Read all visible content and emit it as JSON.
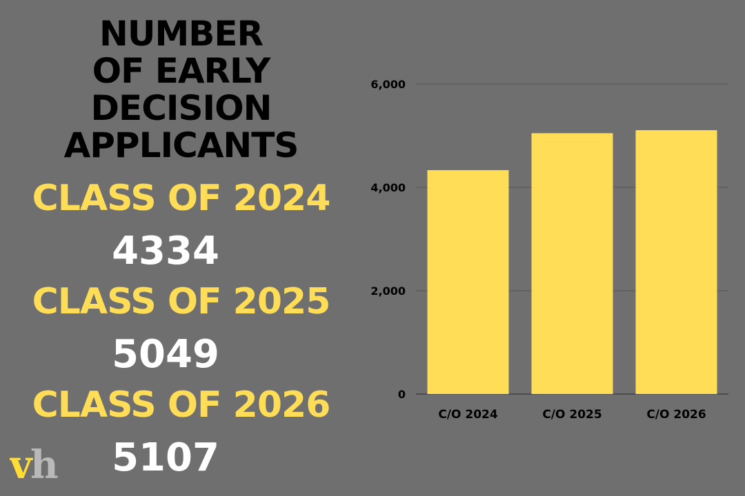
{
  "headline": {
    "lines": [
      "NUMBER",
      "OF EARLY",
      "DECISION",
      "APPLICANTS"
    ]
  },
  "classes": [
    {
      "label": "CLASS OF 2024",
      "count": "4334"
    },
    {
      "label": "CLASS OF 2025",
      "count": "5049"
    },
    {
      "label": "CLASS OF 2026",
      "count": "5107"
    }
  ],
  "logo": {
    "text": "vh"
  },
  "colors": {
    "background": "#6f6f6f",
    "accent": "#ffdd57",
    "headline": "#000000",
    "count": "#ffffff",
    "gridline": "#555555"
  },
  "chart_data": {
    "type": "bar",
    "title": "",
    "xlabel": "",
    "ylabel": "",
    "categories": [
      "C/O 2024",
      "C/O 2025",
      "C/O 2026"
    ],
    "values": [
      4334,
      5049,
      5107
    ],
    "ylim": [
      0,
      6000
    ],
    "yticks": [
      0,
      2000,
      4000,
      6000
    ],
    "ytick_labels": [
      "0",
      "2,000",
      "4,000",
      "6,000"
    ],
    "grid": true,
    "legend": "none"
  }
}
